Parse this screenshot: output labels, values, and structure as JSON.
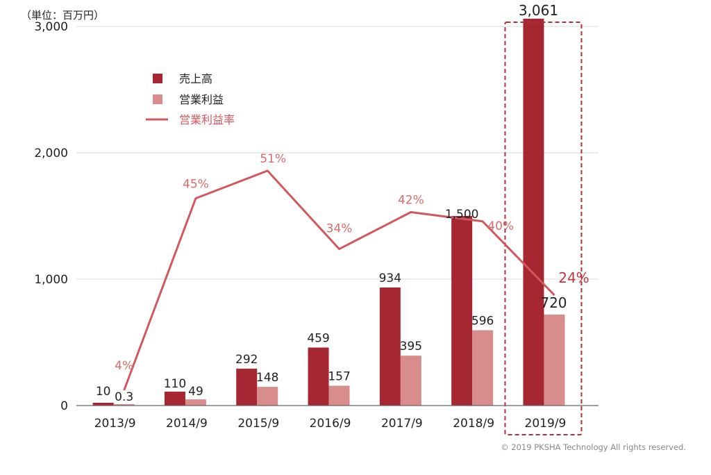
{
  "unit_label": "（単位：百万円）",
  "copyright": "© 2019 PKSHA Technology All rights reserved.",
  "colors": {
    "sales": "#a62631",
    "operating_profit": "#d98c8c",
    "margin_line": "#d0585e",
    "highlight_box": "#b0303a"
  },
  "chart_data": {
    "type": "bar",
    "categories": [
      "2013/9",
      "2014/9",
      "2015/9",
      "2016/9",
      "2017/9",
      "2018/9",
      "2019/9"
    ],
    "ylim": [
      0,
      3000
    ],
    "yticks": [
      0,
      1000,
      2000,
      3000
    ],
    "ytick_labels": [
      "0",
      "1,000",
      "2,000",
      "3,000"
    ],
    "grid": true,
    "legend_position": "top-left",
    "series": [
      {
        "name": "売上高",
        "kind": "bar",
        "values": [
          10,
          110,
          292,
          459,
          934,
          1500,
          3061
        ],
        "labels": [
          "10",
          "110",
          "292",
          "459",
          "934",
          "1,500",
          "3,061"
        ]
      },
      {
        "name": "営業利益",
        "kind": "bar",
        "values": [
          0.3,
          49,
          148,
          157,
          395,
          596,
          720
        ],
        "labels": [
          "0.3",
          "49",
          "148",
          "157",
          "395",
          "596",
          "720"
        ]
      },
      {
        "name": "営業利益率",
        "kind": "line",
        "values": [
          4,
          45,
          51,
          34,
          42,
          40,
          24
        ],
        "labels": [
          "4%",
          "45%",
          "51%",
          "34%",
          "42%",
          "40%",
          "24%"
        ]
      }
    ],
    "highlighted_category": "2019/9"
  }
}
